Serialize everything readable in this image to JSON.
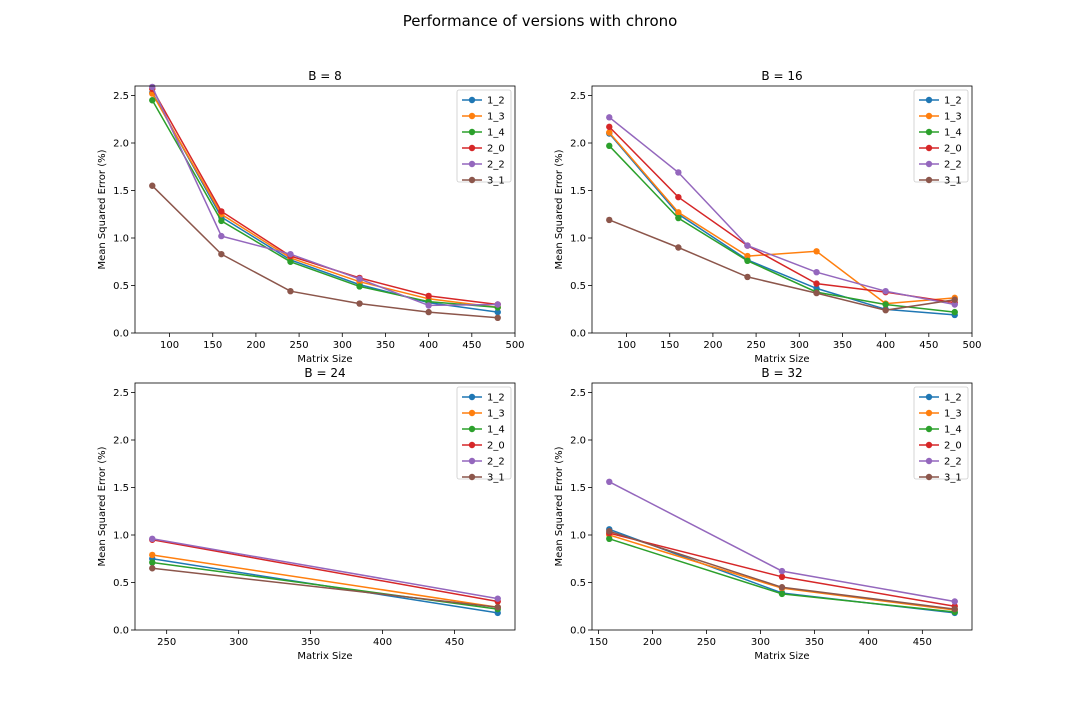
{
  "figure": {
    "title": "Performance of versions with chrono"
  },
  "colors": {
    "1_2": "#1f77b4",
    "1_3": "#ff7f0e",
    "1_4": "#2ca02c",
    "2_0": "#d62728",
    "2_2": "#9467bd",
    "3_1": "#8c564b"
  },
  "chart_data": [
    {
      "type": "line",
      "title": "B = 8",
      "xlabel": "Matrix Size",
      "ylabel": "Mean Squared Error (%)",
      "xlim": [
        60,
        500
      ],
      "ylim": [
        0,
        2.6
      ],
      "xticks": [
        100,
        150,
        200,
        250,
        300,
        350,
        400,
        450,
        500
      ],
      "yticks": [
        0.0,
        0.5,
        1.0,
        1.5,
        2.0,
        2.5
      ],
      "legend": "top-right",
      "x": [
        80,
        160,
        240,
        320,
        400,
        480
      ],
      "series": [
        {
          "name": "1_2",
          "values": [
            2.53,
            1.22,
            0.77,
            0.51,
            0.32,
            0.22
          ]
        },
        {
          "name": "1_3",
          "values": [
            2.52,
            1.25,
            0.79,
            0.54,
            0.36,
            0.27
          ]
        },
        {
          "name": "1_4",
          "values": [
            2.45,
            1.18,
            0.75,
            0.49,
            0.33,
            0.27
          ]
        },
        {
          "name": "2_0",
          "values": [
            2.57,
            1.28,
            0.81,
            0.58,
            0.39,
            0.3
          ]
        },
        {
          "name": "2_2",
          "values": [
            2.59,
            1.02,
            0.83,
            0.57,
            0.29,
            0.3
          ]
        },
        {
          "name": "3_1",
          "values": [
            1.55,
            0.83,
            0.44,
            0.31,
            0.22,
            0.16
          ]
        }
      ]
    },
    {
      "type": "line",
      "title": "B = 16",
      "xlabel": "Matrix Size",
      "ylabel": "Mean Squared Error (%)",
      "xlim": [
        60,
        500
      ],
      "ylim": [
        0,
        2.6
      ],
      "xticks": [
        100,
        150,
        200,
        250,
        300,
        350,
        400,
        450,
        500
      ],
      "yticks": [
        0.0,
        0.5,
        1.0,
        1.5,
        2.0,
        2.5
      ],
      "legend": "top-right",
      "x": [
        80,
        160,
        240,
        320,
        400,
        480
      ],
      "series": [
        {
          "name": "1_2",
          "values": [
            2.1,
            1.25,
            0.77,
            0.47,
            0.25,
            0.19
          ]
        },
        {
          "name": "1_3",
          "values": [
            2.11,
            1.27,
            0.81,
            0.86,
            0.31,
            0.37
          ]
        },
        {
          "name": "1_4",
          "values": [
            1.97,
            1.21,
            0.76,
            0.43,
            0.3,
            0.22
          ]
        },
        {
          "name": "2_0",
          "values": [
            2.17,
            1.43,
            0.92,
            0.52,
            0.43,
            0.32
          ]
        },
        {
          "name": "2_2",
          "values": [
            2.27,
            1.69,
            0.92,
            0.64,
            0.44,
            0.3
          ]
        },
        {
          "name": "3_1",
          "values": [
            1.19,
            0.9,
            0.59,
            0.42,
            0.24,
            0.35
          ]
        }
      ]
    },
    {
      "type": "line",
      "title": "B = 24",
      "xlabel": "Matrix Size",
      "ylabel": "Mean Squared Error (%)",
      "xlim": [
        228,
        492
      ],
      "ylim": [
        0,
        2.6
      ],
      "xticks": [
        250,
        300,
        350,
        400,
        450
      ],
      "yticks": [
        0.0,
        0.5,
        1.0,
        1.5,
        2.0,
        2.5
      ],
      "legend": "top-right",
      "x": [
        240,
        480
      ],
      "series": [
        {
          "name": "1_2",
          "values": [
            0.75,
            0.18
          ]
        },
        {
          "name": "1_3",
          "values": [
            0.79,
            0.24
          ]
        },
        {
          "name": "1_4",
          "values": [
            0.71,
            0.22
          ]
        },
        {
          "name": "2_0",
          "values": [
            0.95,
            0.3
          ]
        },
        {
          "name": "2_2",
          "values": [
            0.96,
            0.33
          ]
        },
        {
          "name": "3_1",
          "values": [
            0.65,
            0.24
          ]
        }
      ]
    },
    {
      "type": "line",
      "title": "B = 32",
      "xlabel": "Matrix Size",
      "ylabel": "Mean Squared Error (%)",
      "xlim": [
        144,
        496
      ],
      "ylim": [
        0,
        2.6
      ],
      "xticks": [
        150,
        200,
        250,
        300,
        350,
        400,
        450
      ],
      "yticks": [
        0.0,
        0.5,
        1.0,
        1.5,
        2.0,
        2.5
      ],
      "legend": "top-right",
      "x": [
        160,
        320,
        480
      ],
      "series": [
        {
          "name": "1_2",
          "values": [
            1.06,
            0.39,
            0.18
          ]
        },
        {
          "name": "1_3",
          "values": [
            1.0,
            0.44,
            0.21
          ]
        },
        {
          "name": "1_4",
          "values": [
            0.96,
            0.38,
            0.19
          ]
        },
        {
          "name": "2_0",
          "values": [
            1.02,
            0.56,
            0.25
          ]
        },
        {
          "name": "2_2",
          "values": [
            1.56,
            0.62,
            0.3
          ]
        },
        {
          "name": "3_1",
          "values": [
            1.04,
            0.45,
            0.22
          ]
        }
      ]
    }
  ]
}
